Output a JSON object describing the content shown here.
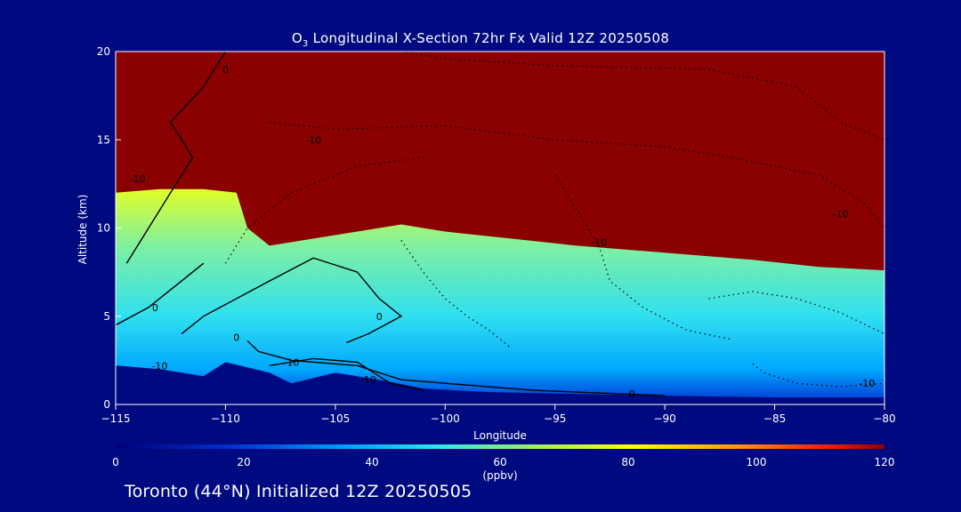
{
  "title_prefix": "O",
  "title_sub": "3",
  "title_rest": " Longitudinal X-Section 72hr  Fx Valid 12Z 20250508",
  "subtitle": "Toronto (44°N) Initialized 12Z 20250505",
  "colors": {
    "background": "#000a80",
    "stratosphere": "#8b0000",
    "contour": "#000000"
  },
  "chart_data": {
    "type": "heatmap",
    "xlabel": "Longitude",
    "ylabel": "Altitude (km)",
    "xlim": [
      -115,
      -80
    ],
    "ylim": [
      0,
      20
    ],
    "x_ticks": [
      -115,
      -110,
      -105,
      -100,
      -95,
      -90,
      -85,
      -80
    ],
    "y_ticks": [
      0,
      5,
      10,
      15,
      20
    ],
    "colorbar": {
      "label": "(ppbv)",
      "ticks": [
        0,
        20,
        40,
        60,
        80,
        100,
        120
      ],
      "range": [
        0,
        120
      ]
    },
    "contour_labels": [
      "0",
      "0",
      "0",
      "0",
      "0",
      "-10",
      "-10",
      "-10",
      "-10",
      "-10",
      "-10",
      "-10",
      "-10"
    ],
    "tropopause_km": [
      [
        -115,
        12.0
      ],
      [
        -113,
        12.2
      ],
      [
        -111,
        12.2
      ],
      [
        -109.5,
        12.0
      ],
      [
        -109,
        10.0
      ],
      [
        -108,
        9.0
      ],
      [
        -106,
        9.4
      ],
      [
        -104,
        9.8
      ],
      [
        -102,
        10.2
      ],
      [
        -100,
        9.8
      ],
      [
        -97,
        9.4
      ],
      [
        -94,
        9.0
      ],
      [
        -90,
        8.6
      ],
      [
        -86,
        8.2
      ],
      [
        -83,
        7.8
      ],
      [
        -80,
        7.6
      ]
    ],
    "surface_km": [
      [
        -115,
        2.2
      ],
      [
        -113,
        2.0
      ],
      [
        -111,
        1.6
      ],
      [
        -110,
        2.4
      ],
      [
        -108,
        1.8
      ],
      [
        -107,
        1.2
      ],
      [
        -105,
        1.8
      ],
      [
        -103,
        1.4
      ],
      [
        -101,
        0.9
      ],
      [
        -98,
        0.7
      ],
      [
        -94,
        0.6
      ],
      [
        -90,
        0.5
      ],
      [
        -85,
        0.4
      ],
      [
        -80,
        0.4
      ]
    ]
  }
}
